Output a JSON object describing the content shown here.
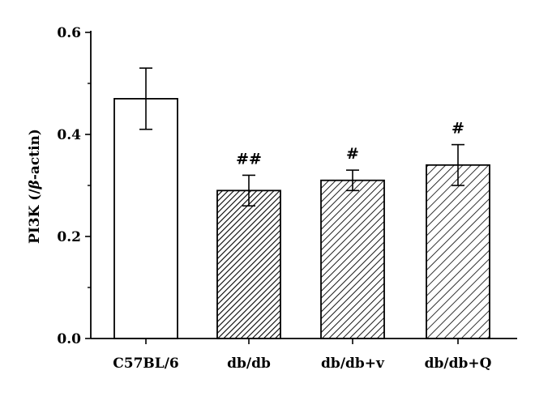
{
  "chart_data": {
    "type": "bar",
    "categories": [
      "C57BL/6",
      "db/db",
      "db/db+v",
      "db/db+Q"
    ],
    "values": [
      0.47,
      0.29,
      0.31,
      0.34
    ],
    "errors": [
      0.06,
      0.03,
      0.02,
      0.04
    ],
    "annotations": [
      "",
      "##",
      "#",
      "#"
    ],
    "fills": [
      "white",
      "dense-hatch",
      "hatch",
      "sparse-hatch"
    ],
    "ylabel_prefix": "PI3K (/",
    "ylabel_italic": "β",
    "ylabel_suffix": "-actin)",
    "ylim": [
      0,
      0.6
    ],
    "yticks": [
      "0.0",
      "0.2",
      "0.4",
      "0.6"
    ],
    "ytick_values": [
      0,
      0.2,
      0.4,
      0.6
    ],
    "grid": false,
    "colors": {
      "bar_stroke": "#000000",
      "hatch": "#000000",
      "background": "#ffffff"
    }
  }
}
